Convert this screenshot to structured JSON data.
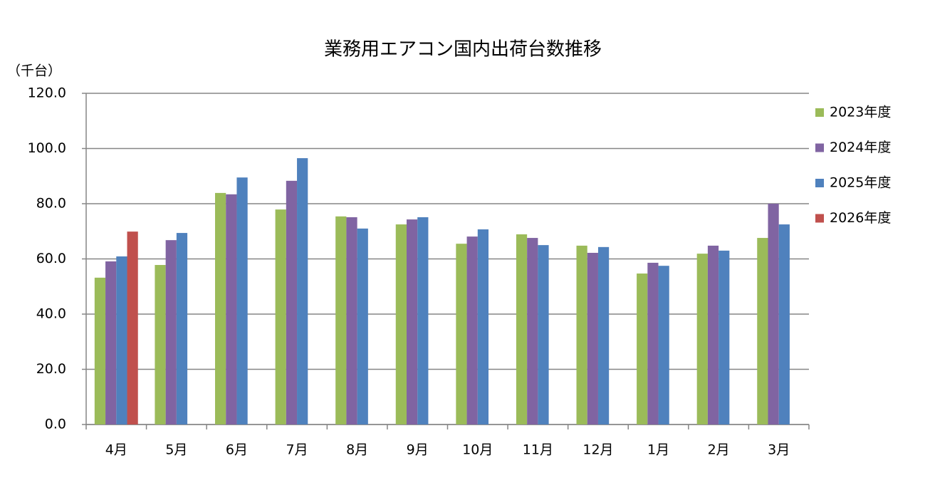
{
  "chart_data": {
    "type": "bar",
    "title": "業務用エアコン国内出荷台数推移",
    "y_label": "（千台）",
    "categories": [
      "4月",
      "5月",
      "6月",
      "7月",
      "8月",
      "9月",
      "10月",
      "11月",
      "12月",
      "1月",
      "2月",
      "3月"
    ],
    "series": [
      {
        "name": "2023年度",
        "color": "#9bbb59",
        "values": [
          53.2,
          57.8,
          83.9,
          77.9,
          75.4,
          72.5,
          65.5,
          68.9,
          64.8,
          54.7,
          61.9,
          67.6
        ]
      },
      {
        "name": "2024年度",
        "color": "#8064a2",
        "values": [
          59.1,
          66.8,
          83.4,
          88.3,
          75.1,
          74.3,
          68.1,
          67.6,
          62.2,
          58.6,
          64.8,
          80.0
        ]
      },
      {
        "name": "2025年度",
        "color": "#4f81bd",
        "values": [
          60.9,
          69.4,
          89.5,
          96.5,
          71.0,
          75.1,
          70.7,
          65.0,
          64.3,
          57.5,
          63.0,
          72.5
        ]
      },
      {
        "name": "2026年度",
        "color": "#c0504d",
        "values": [
          69.9,
          null,
          null,
          null,
          null,
          null,
          null,
          null,
          null,
          null,
          null,
          null
        ]
      }
    ],
    "ylim": [
      0,
      120
    ],
    "yticks": [
      {
        "value": 0,
        "label": "0.0"
      },
      {
        "value": 20,
        "label": "20.0"
      },
      {
        "value": 40,
        "label": "40.0"
      },
      {
        "value": 60,
        "label": "60.0"
      },
      {
        "value": 80,
        "label": "80.0"
      },
      {
        "value": 100,
        "label": "100.0"
      },
      {
        "value": 120,
        "label": "120.0"
      }
    ],
    "grid": true,
    "legend": "right"
  }
}
